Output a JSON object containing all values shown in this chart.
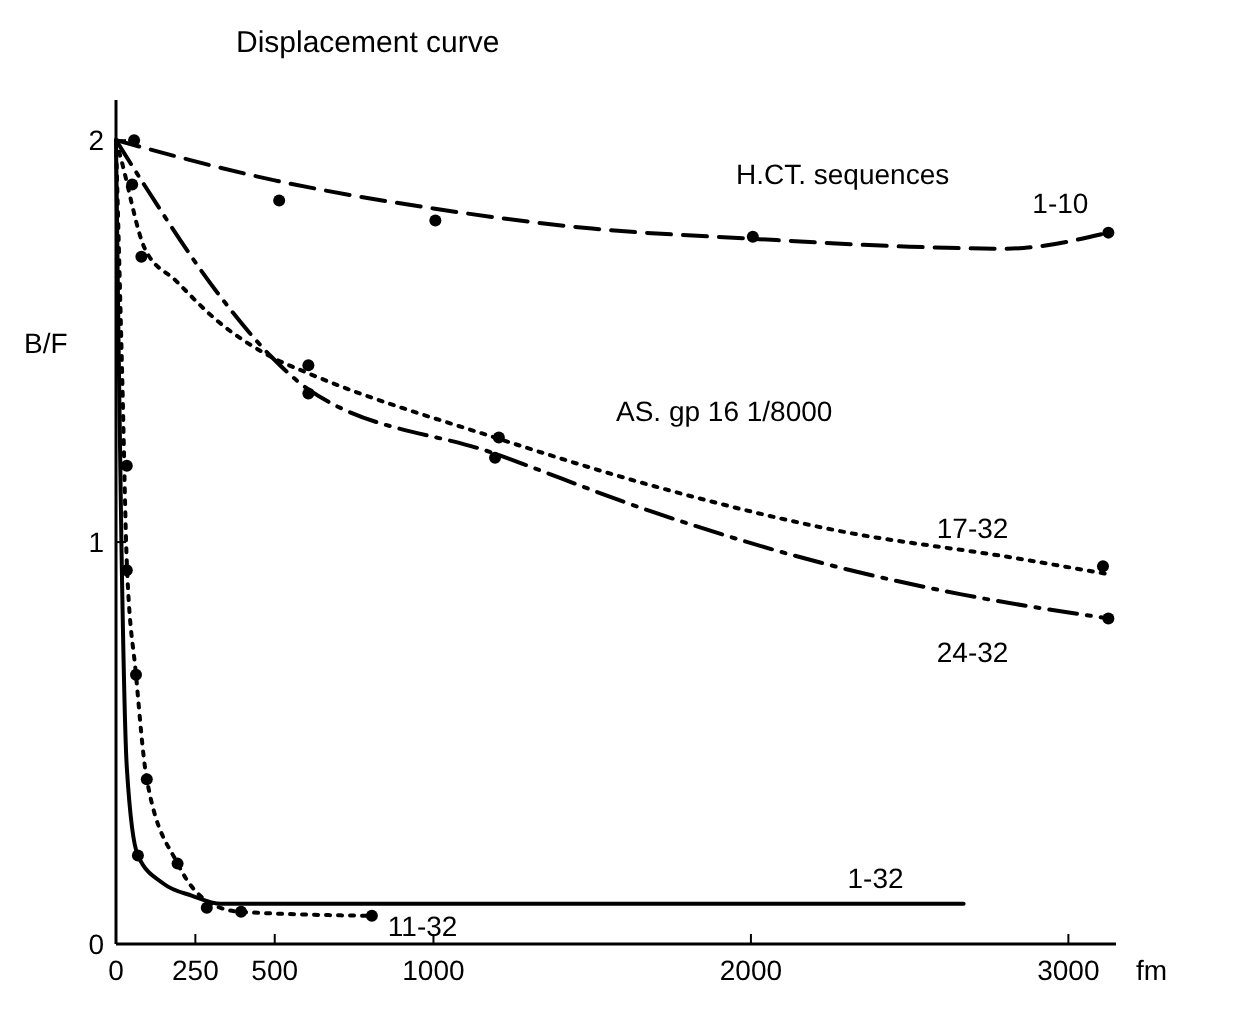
{
  "chart_data": {
    "type": "line",
    "title": "Displacement curve",
    "xlabel": "fm",
    "ylabel": "B/F",
    "annotations": [
      "H.CT. sequences",
      "AS. gp 16 1/8000"
    ],
    "xlim": [
      0,
      3150
    ],
    "xticks": [
      0,
      250,
      500,
      1000,
      2000,
      3000
    ],
    "ylim": [
      0,
      2.1
    ],
    "yticks": [
      0,
      1,
      2
    ],
    "grid": false,
    "series": [
      {
        "name": "1-10",
        "line_style": "dashed",
        "marker": "none",
        "color": "#000000",
        "x": [
          0,
          500,
          1000,
          1500,
          2000,
          2500,
          2800,
          3126
        ],
        "values": [
          2.0,
          1.9,
          1.83,
          1.78,
          1.755,
          1.735,
          1.73,
          1.77
        ]
      },
      {
        "name": "17-32",
        "line_style": "dotted",
        "marker": "none",
        "color": "#000000",
        "x": [
          0,
          17,
          91,
          189,
          320,
          491,
          606,
          1194,
          1691,
          2263,
          2834,
          3126
        ],
        "values": [
          2.0,
          1.95,
          1.73,
          1.65,
          1.55,
          1.46,
          1.42,
          1.26,
          1.14,
          1.03,
          0.96,
          0.92
        ]
      },
      {
        "name": "24-32",
        "line_style": "dashdot",
        "marker": "none",
        "color": "#000000",
        "x": [
          0,
          80,
          320,
          491,
          606,
          1194,
          1691,
          2263,
          2663,
          3126
        ],
        "values": [
          2.0,
          1.9,
          1.62,
          1.46,
          1.38,
          1.22,
          1.075,
          0.94,
          0.87,
          0.81
        ]
      },
      {
        "name": "1-32",
        "line_style": "solid",
        "marker": "none",
        "color": "#000000",
        "x": [
          0,
          8,
          17,
          34,
          69,
          150,
          240,
          330,
          2670
        ],
        "values": [
          2.0,
          1.5,
          1.0,
          0.44,
          0.22,
          0.15,
          0.12,
          0.1,
          0.1
        ]
      },
      {
        "name": "11-32",
        "line_style": "dotted",
        "marker": "none",
        "color": "#000000",
        "x": [
          0,
          20,
          34,
          63,
          97,
          194,
          300,
          394,
          806
        ],
        "values": [
          2.0,
          1.4,
          0.95,
          0.67,
          0.41,
          0.2,
          0.1,
          0.08,
          0.07
        ]
      },
      {
        "type": "scatter",
        "marker": "circle",
        "color": "#000000",
        "x": [
          57,
          514,
          1006,
          2006,
          3126
        ],
        "values": [
          2.0,
          1.85,
          1.8,
          1.76,
          1.77
        ]
      },
      {
        "type": "scatter",
        "marker": "circle",
        "color": "#000000",
        "x": [
          80,
          606,
          1206,
          3109
        ],
        "values": [
          1.71,
          1.44,
          1.26,
          0.94
        ]
      },
      {
        "type": "scatter",
        "marker": "circle",
        "color": "#000000",
        "x": [
          51,
          606,
          1194,
          3126
        ],
        "values": [
          1.89,
          1.37,
          1.21,
          0.81
        ]
      },
      {
        "type": "scatter",
        "marker": "circle",
        "color": "#000000",
        "x": [
          34,
          69,
          286
        ],
        "values": [
          1.19,
          0.22,
          0.09
        ]
      },
      {
        "type": "scatter",
        "marker": "circle",
        "color": "#000000",
        "x": [
          34,
          63,
          97,
          194,
          394,
          806
        ],
        "values": [
          0.93,
          0.67,
          0.41,
          0.2,
          0.08,
          0.07
        ]
      }
    ]
  }
}
